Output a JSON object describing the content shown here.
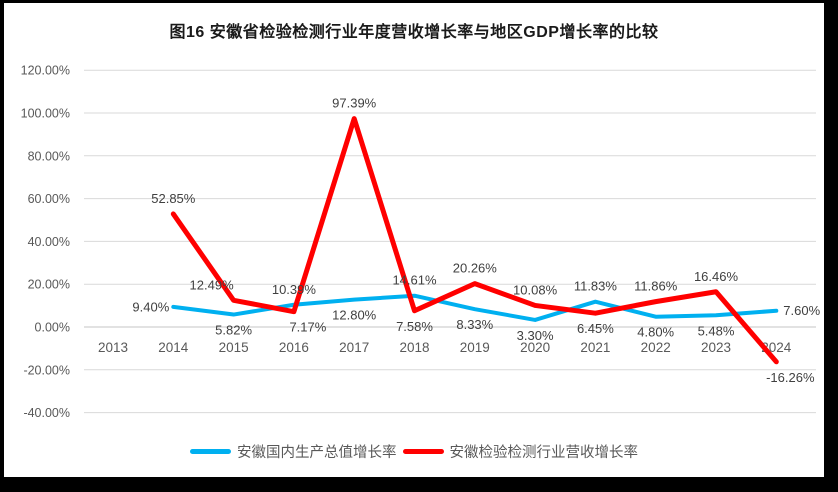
{
  "chart_data": {
    "type": "line",
    "title": "图16 安徽省检验检测行业年度营收增长率与地区GDP增长率的比较",
    "categories": [
      "2013",
      "2014",
      "2015",
      "2016",
      "2017",
      "2018",
      "2019",
      "2020",
      "2021",
      "2022",
      "2023",
      "2024"
    ],
    "series": [
      {
        "name": "安徽国内生产总值增长率",
        "color": "#00B0F0",
        "values": [
          null,
          9.4,
          5.82,
          10.39,
          12.8,
          14.61,
          8.33,
          3.3,
          11.83,
          4.8,
          5.48,
          7.6
        ],
        "labels": [
          "",
          "9.40%",
          "5.82%",
          "10.39%",
          "12.80%",
          "14.61%",
          "8.33%",
          "3.30%",
          "11.83%",
          "4.80%",
          "5.48%",
          "7.60%"
        ],
        "label_pos": [
          "",
          "left",
          "below",
          "above",
          "below",
          "above",
          "below",
          "below",
          "above",
          "below",
          "below",
          "right"
        ]
      },
      {
        "name": "安徽检验检测行业营收增长率",
        "color": "#FF0000",
        "values": [
          null,
          52.85,
          12.49,
          7.17,
          97.39,
          7.58,
          20.26,
          10.08,
          6.45,
          11.86,
          16.46,
          -16.26
        ],
        "labels": [
          "",
          "52.85%",
          "12.49%",
          "7.17%",
          "97.39%",
          "7.58%",
          "20.26%",
          "10.08%",
          "6.45%",
          "11.86%",
          "16.46%",
          "-16.26%"
        ],
        "label_pos": [
          "",
          "above",
          "above-left",
          "below-right",
          "above",
          "below",
          "above",
          "above",
          "below",
          "above",
          "above",
          "below-right"
        ]
      }
    ],
    "y_axis": {
      "min": -40,
      "max": 120,
      "step": 20,
      "tick_labels": [
        "120.00%",
        "100.00%",
        "80.00%",
        "60.00%",
        "40.00%",
        "20.00%",
        "0.00%",
        "-20.00%",
        "-40.00%"
      ]
    },
    "x_axis": {
      "tick_labels": [
        "2013",
        "2014",
        "2015",
        "2016",
        "2017",
        "2018",
        "2019",
        "2020",
        "2021",
        "2022",
        "2023",
        "2024"
      ]
    },
    "grid": true,
    "legend_position": "bottom",
    "colors": {
      "gridline": "#D9D9D9",
      "zero_line": "#C6C6C6",
      "axis_text": "#595959",
      "data_label": "#404040",
      "frame": "#000000",
      "background": "#FFFFFF"
    }
  }
}
